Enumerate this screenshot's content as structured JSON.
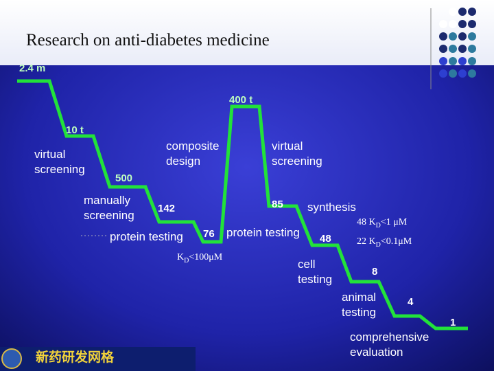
{
  "title": "Research on anti-diabetes medicine",
  "quantities": [
    "2.4 m",
    "10 t",
    "500",
    "142",
    "76",
    "400 t",
    "85",
    "48",
    "8",
    "4",
    "1"
  ],
  "stages": [
    "virtual screening",
    "composite design",
    "virtual screening",
    "manually screening",
    "protein testing",
    "protein testing",
    "synthesis",
    "cell testing",
    "animal testing",
    "comprehensive evaluation"
  ],
  "notes": [
    {
      "prefix": "48 K",
      "sub": "D",
      "suffix": "<1 μM"
    },
    {
      "prefix": "22 K",
      "sub": "D",
      "suffix": "<0.1μM"
    },
    {
      "prefix": "K",
      "sub": "D",
      "suffix": "<100μM"
    }
  ],
  "logo": "新药研发网格"
}
